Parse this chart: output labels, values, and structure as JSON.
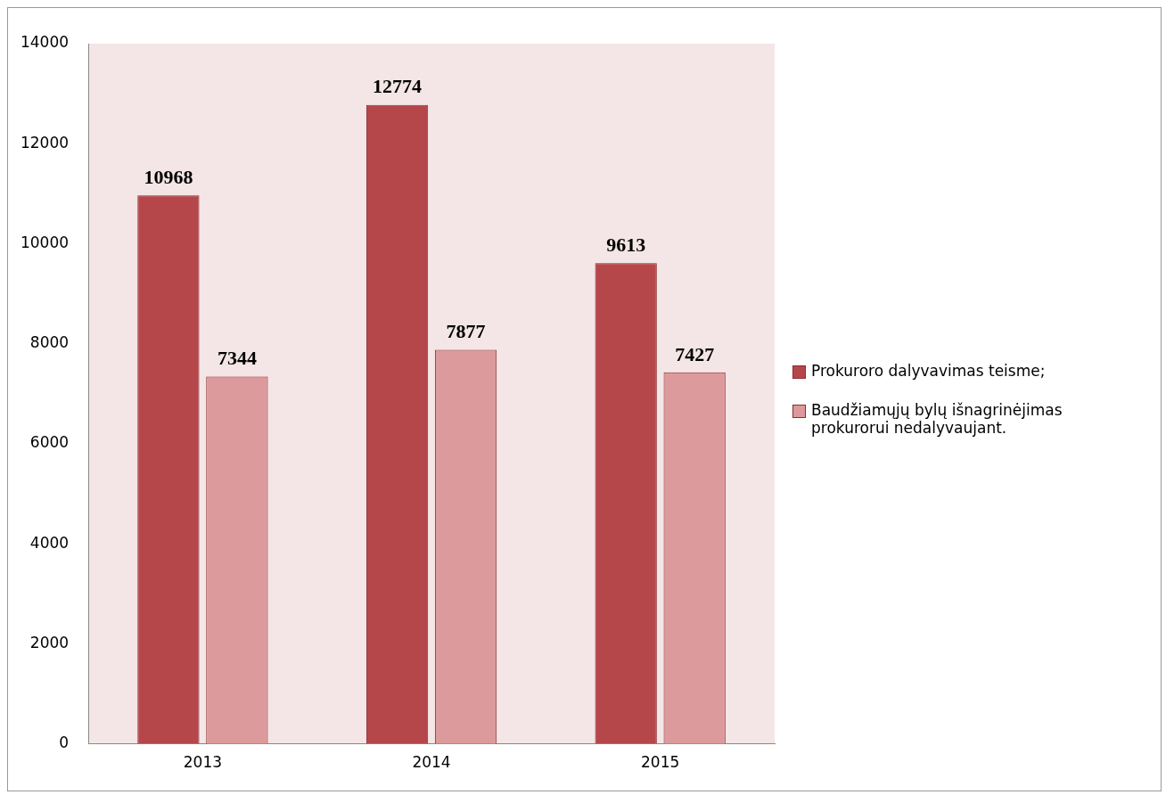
{
  "chart_data": {
    "type": "bar",
    "categories": [
      "2013",
      "2014",
      "2015"
    ],
    "series": [
      {
        "name": "Prokuroro dalyvavimas teisme;",
        "color": "#b5474a",
        "values": [
          10968,
          12774,
          9613
        ]
      },
      {
        "name": "Baudžiamųjų bylų išnagrinėjimas prokurorui nedalyvaujant.",
        "color": "#dd9a9c",
        "values": [
          7344,
          7877,
          7427
        ]
      }
    ],
    "ylim": [
      0,
      14000
    ],
    "yticks": [
      0,
      2000,
      4000,
      6000,
      8000,
      10000,
      12000,
      14000
    ],
    "grid": false,
    "legend": "right",
    "data_labels": true
  }
}
